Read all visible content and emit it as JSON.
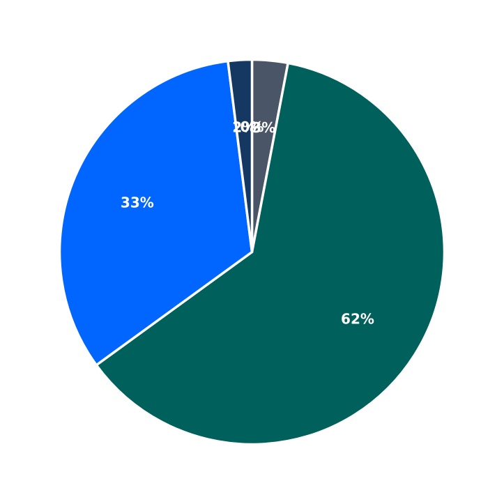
{
  "chart_data": {
    "type": "pie",
    "title": "",
    "start_angle_deg": 90,
    "direction": "clockwise",
    "slices": [
      {
        "value": 3,
        "label": "3%",
        "color": "#4a5568"
      },
      {
        "value": 62,
        "label": "62%",
        "color": "#00605c"
      },
      {
        "value": 33,
        "label": "33%",
        "color": "#0066ff"
      },
      {
        "value": 2,
        "label": "2%",
        "color": "#153863"
      },
      {
        "value": 0,
        "label": "0%",
        "color": "#2f2f2f"
      }
    ],
    "legend": "none"
  }
}
